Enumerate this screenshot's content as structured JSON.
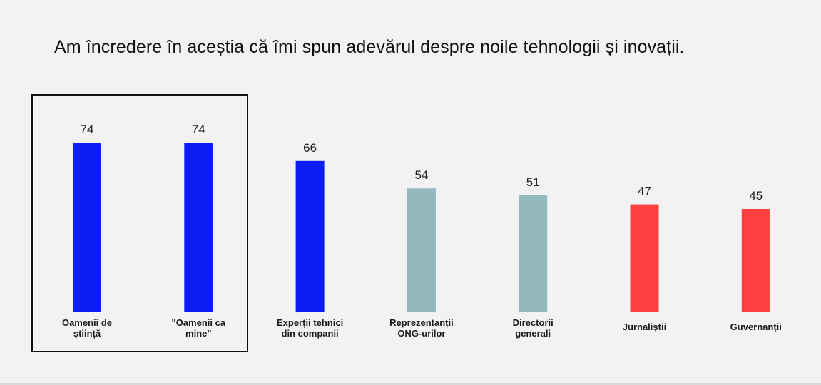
{
  "chart_data": {
    "type": "bar",
    "title": "Am încredere în aceștia că îmi spun adevărul despre noile tehnologii și inovații.",
    "xlabel": "",
    "ylabel": "",
    "ylim": [
      0,
      100
    ],
    "grid": false,
    "categories": [
      [
        "Oamenii de",
        "știință"
      ],
      [
        "\"Oamenii ca",
        "mine\""
      ],
      [
        "Experții tehnici",
        "din companii"
      ],
      [
        "Reprezentanții",
        "ONG-urilor"
      ],
      [
        "Directorii",
        "generali"
      ],
      [
        "Jurnaliștii"
      ],
      [
        "Guvernanții"
      ]
    ],
    "values": [
      74,
      74,
      66,
      54,
      51,
      47,
      45
    ],
    "colors": [
      "#0a1ef5",
      "#0a1ef5",
      "#0a1ef5",
      "#93b8be",
      "#93b8be",
      "#ff4040",
      "#ff4040"
    ],
    "highlighted_categories": [
      0,
      1
    ]
  }
}
